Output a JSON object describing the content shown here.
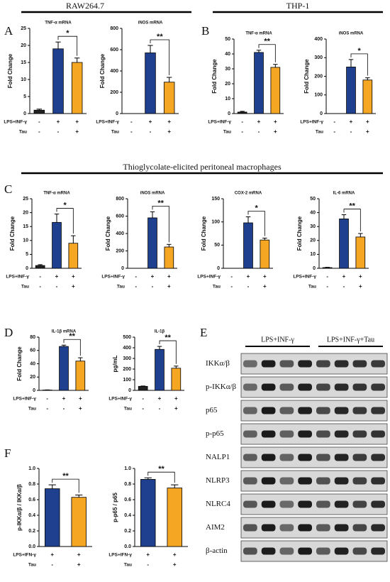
{
  "headers": [
    "RAW264.7",
    "THP-1",
    "Thioglycolate-elicited peritoneal macrophages"
  ],
  "panels": [
    "A",
    "B",
    "C",
    "D",
    "E",
    "F"
  ],
  "blot": {
    "groups": [
      "LPS+INF-γ",
      "LPS+INF-γ+Tau"
    ],
    "rows": [
      "IKKα/β",
      "p-IKKα/β",
      "p65",
      "p-p65",
      "NALP1",
      "NLRP3",
      "NLRC4",
      "AIM2",
      "β-actin"
    ]
  },
  "chart_data": [
    {
      "type": "bar",
      "title": "TNF-α mRNA",
      "ylabel": "Fold Change",
      "values": [
        1,
        19,
        15
      ],
      "errors": [
        0.3,
        2,
        1.3
      ],
      "colors": [
        "#222222",
        "#1f3f8f",
        "#f5a623"
      ],
      "ylim": [
        0,
        25
      ],
      "yticks": [
        0,
        5,
        10,
        15,
        20,
        25
      ],
      "significance": "*",
      "rows": [
        {
          "label": "LPS+INF-γ",
          "marks": [
            "-",
            "+",
            "+"
          ]
        },
        {
          "label": "Tau",
          "marks": [
            "-",
            "-",
            "+"
          ]
        }
      ]
    },
    {
      "type": "bar",
      "title": "iNOS mRNA",
      "ylabel": "Fold Change",
      "values": [
        0,
        570,
        295
      ],
      "errors": [
        0,
        70,
        45
      ],
      "colors": [
        "#222222",
        "#1f3f8f",
        "#f5a623"
      ],
      "ylim": [
        0,
        800
      ],
      "yticks": [
        0,
        200,
        400,
        600,
        800
      ],
      "significance": "**",
      "rows": [
        {
          "label": "LPS+INF-γ",
          "marks": [
            "-",
            "+",
            "+"
          ]
        },
        {
          "label": "Tau",
          "marks": [
            "-",
            "-",
            "+"
          ]
        }
      ]
    },
    {
      "type": "bar",
      "title": "TNF-α mRNA",
      "ylabel": "Fold Change",
      "values": [
        1,
        41,
        31
      ],
      "errors": [
        0.5,
        1.5,
        2
      ],
      "colors": [
        "#222222",
        "#1f3f8f",
        "#f5a623"
      ],
      "ylim": [
        0,
        50
      ],
      "yticks": [
        0,
        10,
        20,
        30,
        40,
        50
      ],
      "significance": "**",
      "rows": [
        {
          "label": "LPS+INF-γ",
          "marks": [
            "-",
            "+",
            "+"
          ]
        },
        {
          "label": "Tau",
          "marks": [
            "-",
            "-",
            "+"
          ]
        }
      ]
    },
    {
      "type": "bar",
      "title": "iNOS mRNA",
      "ylabel": "Fold Change",
      "values": [
        0,
        250,
        180
      ],
      "errors": [
        0,
        40,
        12
      ],
      "colors": [
        "#222222",
        "#1f3f8f",
        "#f5a623"
      ],
      "ylim": [
        0,
        400
      ],
      "yticks": [
        0,
        100,
        200,
        300,
        400
      ],
      "significance": "*",
      "rows": [
        {
          "label": "LPS+INF-γ",
          "marks": [
            "-",
            "+",
            "+"
          ]
        },
        {
          "label": "Tau",
          "marks": [
            "-",
            "-",
            "+"
          ]
        }
      ]
    },
    {
      "type": "bar",
      "title": "TNF-α mRNA",
      "ylabel": "Fold Change",
      "values": [
        1,
        16.5,
        9
      ],
      "errors": [
        0.3,
        3,
        2.7
      ],
      "colors": [
        "#222222",
        "#1f3f8f",
        "#f5a623"
      ],
      "ylim": [
        0,
        25
      ],
      "yticks": [
        0,
        5,
        10,
        15,
        20,
        25
      ],
      "significance": "*",
      "rows": [
        {
          "label": "LPS+INF-γ",
          "marks": [
            "-",
            "+",
            "+"
          ]
        },
        {
          "label": "Tau",
          "marks": [
            "-",
            "-",
            "+"
          ]
        }
      ]
    },
    {
      "type": "bar",
      "title": "iNOS mRNA",
      "ylabel": "Fold Change",
      "values": [
        0,
        580,
        245
      ],
      "errors": [
        0,
        70,
        30
      ],
      "colors": [
        "#222222",
        "#1f3f8f",
        "#f5a623"
      ],
      "ylim": [
        0,
        800
      ],
      "yticks": [
        0,
        200,
        400,
        600,
        800
      ],
      "significance": "**",
      "rows": [
        {
          "label": "LPS+INF-γ",
          "marks": [
            "-",
            "+",
            "+"
          ]
        },
        {
          "label": "Tau",
          "marks": [
            "-",
            "-",
            "+"
          ]
        }
      ]
    },
    {
      "type": "bar",
      "title": "COX-2 mRNA",
      "ylabel": "Fold Change",
      "values": [
        0,
        98,
        61
      ],
      "errors": [
        0,
        13,
        4
      ],
      "colors": [
        "#222222",
        "#1f3f8f",
        "#f5a623"
      ],
      "ylim": [
        0,
        150
      ],
      "yticks": [
        0,
        50,
        100,
        150
      ],
      "significance": "*",
      "rows": [
        {
          "label": "LPS+INF-γ",
          "marks": [
            "-",
            "+",
            "+"
          ]
        },
        {
          "label": "Tau",
          "marks": [
            "-",
            "-",
            "+"
          ]
        }
      ]
    },
    {
      "type": "bar",
      "title": "IL-6 mRNA",
      "ylabel": "Fold Change",
      "values": [
        0.5,
        35.5,
        22.5
      ],
      "errors": [
        0.2,
        3,
        2.5
      ],
      "colors": [
        "#222222",
        "#1f3f8f",
        "#f5a623"
      ],
      "ylim": [
        0,
        50
      ],
      "yticks": [
        0,
        10,
        20,
        30,
        40,
        50
      ],
      "significance": "**",
      "rows": [
        {
          "label": "LPS+INF-γ",
          "marks": [
            "-",
            "+",
            "+"
          ]
        },
        {
          "label": "Tau",
          "marks": [
            "-",
            "-",
            "+"
          ]
        }
      ]
    },
    {
      "type": "bar",
      "title": "IL-1β mRNA",
      "ylabel": "Fold Change",
      "values": [
        0.5,
        66,
        44
      ],
      "errors": [
        0.2,
        2,
        5
      ],
      "colors": [
        "#222222",
        "#1f3f8f",
        "#f5a623"
      ],
      "ylim": [
        0,
        80
      ],
      "yticks": [
        0,
        20,
        40,
        60,
        80
      ],
      "significance": "**",
      "rows": [
        {
          "label": "LPS+INF-γ",
          "marks": [
            "-",
            "+",
            "+"
          ]
        },
        {
          "label": "Tau",
          "marks": [
            "-",
            "-",
            "+"
          ]
        }
      ]
    },
    {
      "type": "bar",
      "title": "IL-1β",
      "ylabel": "pg/mL",
      "values": [
        38,
        385,
        208
      ],
      "errors": [
        3,
        28,
        20
      ],
      "colors": [
        "#222222",
        "#1f3f8f",
        "#f5a623"
      ],
      "ylim": [
        0,
        500
      ],
      "yticks": [
        0,
        100,
        200,
        300,
        400,
        500
      ],
      "significance": "**",
      "rows": [
        {
          "label": "LPS+INF-γ",
          "marks": [
            "-",
            "+",
            "+"
          ]
        },
        {
          "label": "Tau",
          "marks": [
            "-",
            "-",
            "+"
          ]
        }
      ]
    },
    {
      "type": "bar",
      "ylabel": "p-IKKα/β / IKKα/β",
      "values": [
        0.74,
        0.63
      ],
      "errors": [
        0.05,
        0.03
      ],
      "colors": [
        "#1f3f8f",
        "#f5a623"
      ],
      "ylim": [
        0,
        1.0
      ],
      "yticks": [
        {
          "value": 0,
          "label": "0.0"
        },
        0.2,
        0.4,
        0.6,
        0.8,
        {
          "value": 1,
          "label": "1.0"
        }
      ],
      "significance": "**",
      "rows": [
        {
          "label": "LPS+IFN-γ",
          "marks": [
            "+",
            "+"
          ]
        },
        {
          "label": "Tau",
          "marks": [
            "-",
            "+"
          ]
        }
      ]
    },
    {
      "type": "bar",
      "ylabel": "p-p65 / p65",
      "values": [
        0.86,
        0.75
      ],
      "errors": [
        0.02,
        0.04
      ],
      "colors": [
        "#1f3f8f",
        "#f5a623"
      ],
      "ylim": [
        0,
        1.0
      ],
      "yticks": [
        {
          "value": 0,
          "label": "0.0"
        },
        0.2,
        0.4,
        0.6,
        0.8,
        {
          "value": 1,
          "label": "1.0"
        }
      ],
      "significance": "**",
      "rows": [
        {
          "label": "LPS+IFN-γ",
          "marks": [
            "+",
            "+"
          ]
        },
        {
          "label": "Tau",
          "marks": [
            "-",
            "+"
          ]
        }
      ]
    }
  ]
}
